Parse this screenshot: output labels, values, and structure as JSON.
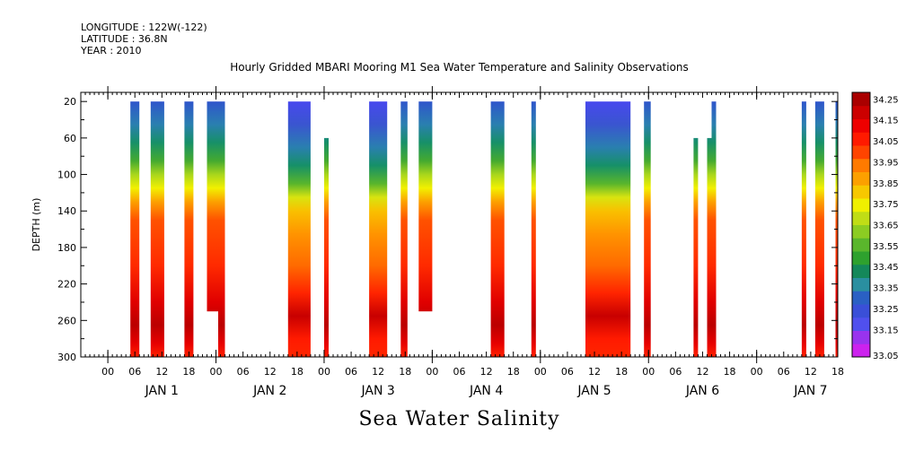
{
  "header": {
    "longitude": "LONGITUDE : 122W(-122)",
    "latitude": "LATITUDE : 36.8N",
    "year": "YEAR : 2010"
  },
  "chart_data": {
    "type": "heatmap",
    "title": "Hourly Gridded MBARI Mooring M1 Sea Water Temperature and Salinity Observations",
    "caption": "Sea Water Salinity",
    "ylabel": "DEPTH (m)",
    "ylim": [
      300,
      10
    ],
    "yticks": [
      20,
      60,
      100,
      140,
      180,
      220,
      260,
      300
    ],
    "xlim_hours": [
      -6,
      162
    ],
    "xtick_hours_labels": [
      "00",
      "06",
      "12",
      "18"
    ],
    "day_labels": [
      "JAN 1",
      "JAN 2",
      "JAN 3",
      "JAN 4",
      "JAN 5",
      "JAN 6",
      "JAN 7"
    ],
    "colorbar": {
      "levels": [
        33.05,
        33.15,
        33.25,
        33.35,
        33.45,
        33.55,
        33.65,
        33.75,
        33.85,
        33.95,
        34.05,
        34.15,
        34.25
      ],
      "colors": [
        "#cc22ee",
        "#9933ee",
        "#5050ee",
        "#3a4fd8",
        "#2a60c4",
        "#2a8fa0",
        "#14885a",
        "#2ea12e",
        "#5ab62c",
        "#8ccc22",
        "#c0dd16",
        "#f0f000",
        "#f7c800",
        "#fca000",
        "#ff7a00",
        "#ff4400",
        "#ff1a00",
        "#ee0000",
        "#cc0000",
        "#aa0000"
      ]
    },
    "segments": [
      {
        "start": 5,
        "end": 7,
        "bottom": 300,
        "top": 20,
        "profile": "standard"
      },
      {
        "start": 9.5,
        "end": 12.5,
        "bottom": 300,
        "top": 20,
        "profile": "standard"
      },
      {
        "start": 17,
        "end": 19,
        "bottom": 300,
        "top": 20,
        "profile": "standard"
      },
      {
        "start": 22,
        "end": 24.5,
        "bottom": 250,
        "top": 20,
        "profile": "standard"
      },
      {
        "start": 24.5,
        "end": 26,
        "bottom": 300,
        "top": 20,
        "profile": "standard"
      },
      {
        "start": 40,
        "end": 45,
        "bottom": 300,
        "top": 20,
        "profile": "fresh"
      },
      {
        "start": 48,
        "end": 49,
        "bottom": 300,
        "top": 60,
        "profile": "standard"
      },
      {
        "start": 58,
        "end": 62,
        "bottom": 300,
        "top": 20,
        "profile": "fresh"
      },
      {
        "start": 65,
        "end": 66.5,
        "bottom": 300,
        "top": 20,
        "profile": "standard"
      },
      {
        "start": 69,
        "end": 72,
        "bottom": 250,
        "top": 20,
        "profile": "standard"
      },
      {
        "start": 85,
        "end": 88,
        "bottom": 300,
        "top": 20,
        "profile": "standard"
      },
      {
        "start": 94,
        "end": 95,
        "bottom": 300,
        "top": 20,
        "profile": "standard"
      },
      {
        "start": 106,
        "end": 116,
        "bottom": 300,
        "top": 20,
        "profile": "fresh"
      },
      {
        "start": 119,
        "end": 120.5,
        "bottom": 300,
        "top": 20,
        "profile": "standard"
      },
      {
        "start": 130,
        "end": 131,
        "bottom": 300,
        "top": 60,
        "profile": "standard"
      },
      {
        "start": 133,
        "end": 134,
        "bottom": 300,
        "top": 60,
        "profile": "standard"
      },
      {
        "start": 134,
        "end": 135,
        "bottom": 300,
        "top": 20,
        "profile": "standard"
      },
      {
        "start": 154,
        "end": 155,
        "bottom": 300,
        "top": 20,
        "profile": "standard"
      },
      {
        "start": 157,
        "end": 159,
        "bottom": 300,
        "top": 20,
        "profile": "standard"
      },
      {
        "start": 161.5,
        "end": 162,
        "bottom": 300,
        "top": 20,
        "profile": "standard"
      }
    ]
  }
}
